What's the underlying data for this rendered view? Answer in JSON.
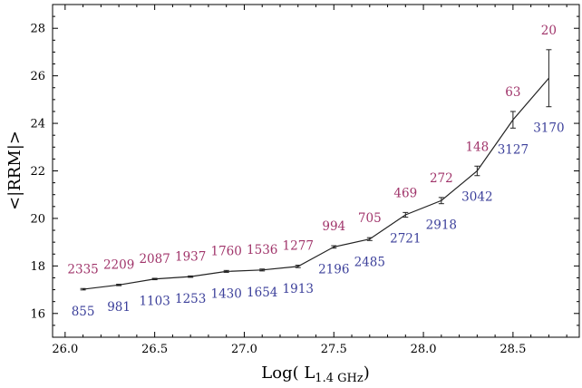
{
  "chart_data": {
    "type": "line",
    "xlabel": {
      "main": "Log( L",
      "sub": "1.4 GHz",
      "close": ")"
    },
    "ylabel": "<|RRM|>",
    "xlim": [
      25.93,
      28.87
    ],
    "ylim": [
      15.0,
      29.0
    ],
    "xticks": [
      26.0,
      26.5,
      27.0,
      27.5,
      28.0,
      28.5
    ],
    "xtick_labels": [
      "26.0",
      "26.5",
      "27.0",
      "27.5",
      "28.0",
      "28.5"
    ],
    "yticks": [
      16,
      18,
      20,
      22,
      24,
      26,
      28
    ],
    "ytick_labels": [
      "16",
      "18",
      "20",
      "22",
      "24",
      "26",
      "28"
    ],
    "grid": false,
    "series": [
      {
        "x": [
          26.1,
          26.3,
          26.5,
          26.7,
          26.9,
          27.1,
          27.3,
          27.5,
          27.7,
          27.9,
          28.1,
          28.3,
          28.5,
          28.7
        ],
        "y": [
          17.02,
          17.2,
          17.45,
          17.55,
          17.77,
          17.83,
          17.98,
          18.8,
          19.13,
          20.15,
          20.75,
          22.0,
          24.15,
          25.9
        ],
        "yerr": [
          0.03,
          0.03,
          0.03,
          0.03,
          0.04,
          0.04,
          0.05,
          0.05,
          0.06,
          0.1,
          0.13,
          0.2,
          0.35,
          1.2
        ]
      }
    ],
    "annotations_upper": [
      "2335",
      "2209",
      "2087",
      "1937",
      "1760",
      "1536",
      "1277",
      "994",
      "705",
      "469",
      "272",
      "148",
      "63",
      "20"
    ],
    "annotations_lower": [
      "855",
      "981",
      "1103",
      "1253",
      "1430",
      "1654",
      "1913",
      "2196",
      "2485",
      "2721",
      "2918",
      "3042",
      "3127",
      "3170"
    ],
    "colors": {
      "upper": "#a0346a",
      "lower": "#3b3f9a",
      "line": "#222222"
    }
  }
}
